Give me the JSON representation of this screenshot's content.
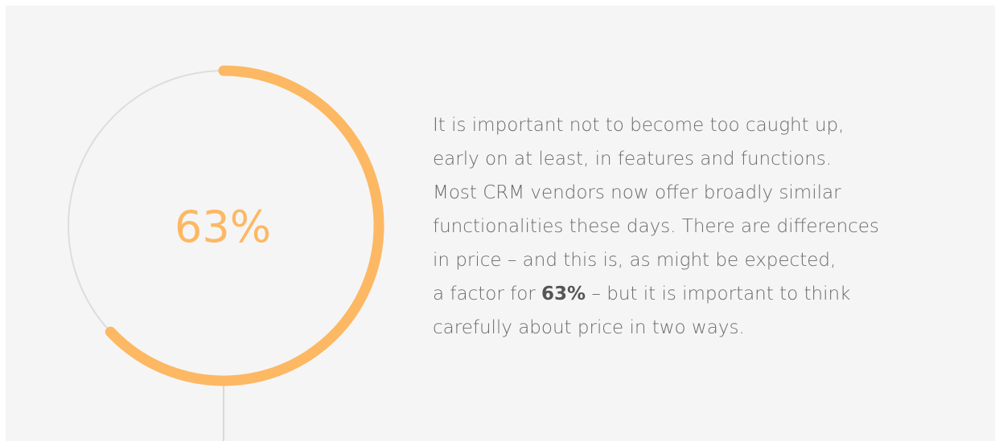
{
  "chart_data": {
    "type": "progress-ring",
    "value": 63,
    "value_label": "63%",
    "max": 100,
    "color": "#fdb863",
    "track_color": "#dddddd"
  },
  "paragraph": [
    "It is important not to become too caught up,",
    "early on at least, in features and functions.",
    "Most CRM vendors now offer broadly similar",
    "functionalities these days. There are differences",
    "in price – and this is, as might be expected,",
    {
      "before": "a factor for ",
      "bold": "63%",
      "after": " – but it is important to think"
    },
    "carefully about price in two ways."
  ]
}
